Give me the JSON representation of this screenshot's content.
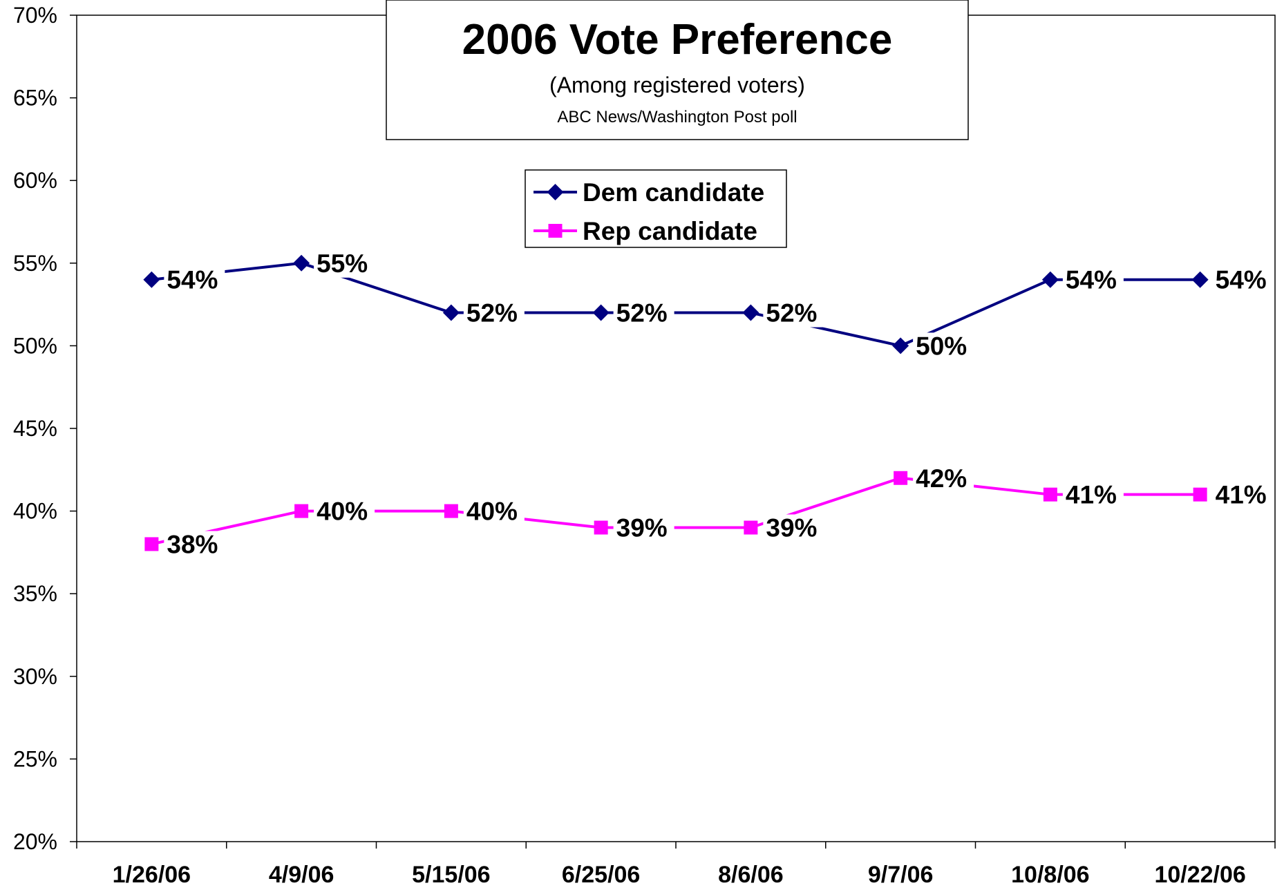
{
  "chart_data": {
    "type": "line",
    "title": "2006 Vote Preference",
    "subtitle": "(Among registered voters)",
    "source": "ABC News/Washington Post poll",
    "categories": [
      "1/26/06",
      "4/9/06",
      "5/15/06",
      "6/25/06",
      "8/6/06",
      "9/7/06",
      "10/8/06",
      "10/22/06"
    ],
    "series": [
      {
        "name": "Dem candidate",
        "color": "#000080",
        "marker": "diamond",
        "values": [
          54,
          55,
          52,
          52,
          52,
          50,
          54,
          54
        ],
        "labels": [
          "54%",
          "55%",
          "52%",
          "52%",
          "52%",
          "50%",
          "54%",
          "54%"
        ]
      },
      {
        "name": "Rep candidate",
        "color": "#FF00FF",
        "marker": "square",
        "values": [
          38,
          40,
          40,
          39,
          39,
          42,
          41,
          41
        ],
        "labels": [
          "38%",
          "40%",
          "40%",
          "39%",
          "39%",
          "42%",
          "41%",
          "41%"
        ]
      }
    ],
    "ylim": [
      20,
      70
    ],
    "yticks": [
      20,
      25,
      30,
      35,
      40,
      45,
      50,
      55,
      60,
      65,
      70
    ],
    "ytick_labels": [
      "20%",
      "25%",
      "30%",
      "35%",
      "40%",
      "45%",
      "50%",
      "55%",
      "60%",
      "65%",
      "70%"
    ],
    "xlabel": "",
    "ylabel": "",
    "grid": false,
    "legend_position": "top-center"
  }
}
